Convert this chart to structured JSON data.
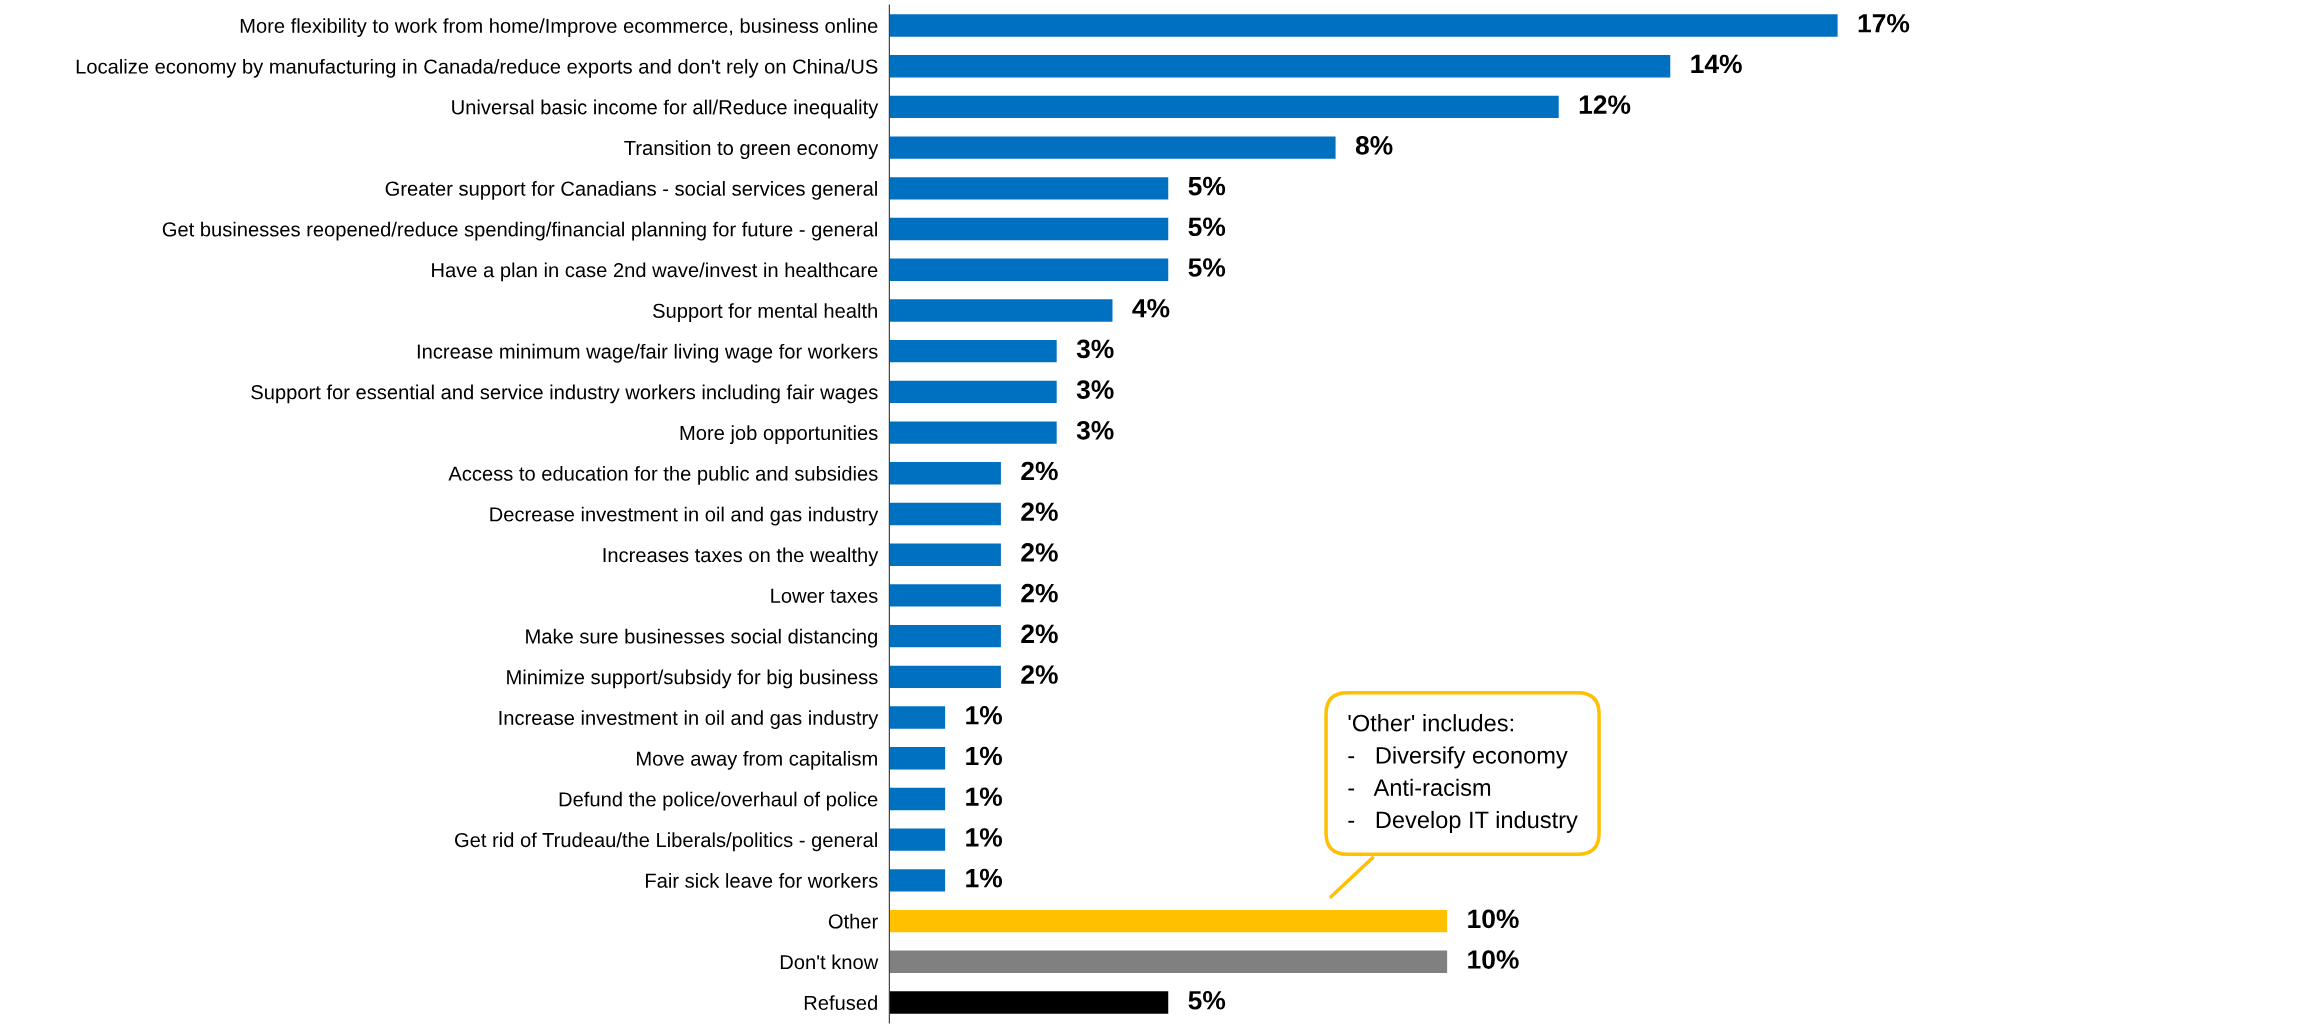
{
  "chart_data": {
    "type": "bar",
    "orientation": "horizontal",
    "data_labels": true,
    "categories": [
      "More flexibility to work from home/Improve ecommerce, business online",
      "Localize economy by manufacturing in Canada/reduce exports and don't rely on China/US",
      "Universal basic income for all/Reduce inequality",
      "Transition to green economy",
      "Greater support for Canadians - social services general",
      "Get businesses reopened/reduce spending/financial planning for future - general",
      "Have a plan in case 2nd wave/invest in healthcare",
      "Support for mental health",
      "Increase minimum wage/fair living wage for workers",
      "Support for essential and service industry workers including fair wages",
      "More job opportunities",
      "Access to education for the public and subsidies",
      "Decrease investment in oil and gas industry",
      "Increases taxes on the wealthy",
      "Lower taxes",
      "Make sure businesses social distancing",
      "Minimize support/subsidy for big business",
      "Increase investment in oil and gas industry",
      "Move away from capitalism",
      "Defund the police/overhaul of police",
      "Get rid of Trudeau/the Liberals/politics - general",
      "Fair sick leave for workers",
      "Other",
      "Don't know",
      "Refused"
    ],
    "values": [
      17,
      14,
      12,
      8,
      5,
      5,
      5,
      4,
      3,
      3,
      3,
      2,
      2,
      2,
      2,
      2,
      2,
      1,
      1,
      1,
      1,
      1,
      10,
      10,
      5
    ],
    "value_labels": [
      "17%",
      "14%",
      "12%",
      "8%",
      "5%",
      "5%",
      "5%",
      "4%",
      "3%",
      "3%",
      "3%",
      "2%",
      "2%",
      "2%",
      "2%",
      "2%",
      "2%",
      "1%",
      "1%",
      "1%",
      "1%",
      "1%",
      "10%",
      "10%",
      "5%"
    ],
    "colors": [
      "#0070c0",
      "#0070c0",
      "#0070c0",
      "#0070c0",
      "#0070c0",
      "#0070c0",
      "#0070c0",
      "#0070c0",
      "#0070c0",
      "#0070c0",
      "#0070c0",
      "#0070c0",
      "#0070c0",
      "#0070c0",
      "#0070c0",
      "#0070c0",
      "#0070c0",
      "#0070c0",
      "#0070c0",
      "#0070c0",
      "#0070c0",
      "#0070c0",
      "#ffc000",
      "#808080",
      "#000000"
    ],
    "annotations": [
      "'Other' includes:\n-   Diversify economy\n-   Anti-racism\n-   Develop IT industry"
    ]
  }
}
